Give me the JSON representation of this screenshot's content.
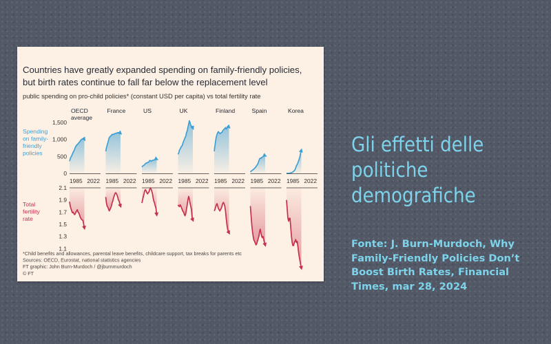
{
  "chart_data": {
    "type": "line",
    "title_lines": [
      "Countries have greatly expanded spending on family-friendly policies,",
      "but birth rates continue to fall far below the replacement level"
    ],
    "subtitle": "public spending on pro-child policies* (constant USD per capita) vs total fertility rate",
    "top_label": [
      "Spending",
      "on family-",
      "friendly",
      "policies"
    ],
    "bottom_label": [
      "Total",
      "fertility",
      "rate"
    ],
    "top_ylim": [
      0,
      1600
    ],
    "top_ticks": [
      "1,500",
      "1,000",
      "500",
      "0"
    ],
    "top_tick_values": [
      1500,
      1000,
      500,
      0
    ],
    "bottom_ylim": [
      0.9,
      2.1
    ],
    "bottom_ticks": [
      "2.1",
      "1.9",
      "1.7",
      "1.5",
      "1.3",
      "1.1"
    ],
    "bottom_tick_values": [
      2.1,
      1.9,
      1.7,
      1.5,
      1.3,
      1.1
    ],
    "x_tick_labels": [
      "1985",
      "2022"
    ],
    "xlim": [
      1980,
      2022
    ],
    "colors": {
      "spending": "#3f9fd3",
      "fertility": "#c5304c"
    },
    "countries": [
      {
        "name": [
          "OECD",
          "average"
        ],
        "spending": {
          "start": 1980,
          "values": [
            360,
            430,
            480,
            520,
            560,
            620,
            650,
            700,
            760,
            800,
            830,
            850,
            870,
            900,
            920,
            950,
            980,
            1000,
            1010,
            1020,
            1030,
            1000
          ]
        },
        "fertility": {
          "start": 1980,
          "values": [
            1.87,
            1.8,
            1.76,
            1.72,
            1.69,
            1.7,
            1.68,
            1.66,
            1.67,
            1.7,
            1.72,
            1.74,
            1.7,
            1.69,
            1.66,
            1.62,
            1.6,
            1.58,
            1.57,
            1.56,
            1.5,
            1.44
          ]
        }
      },
      {
        "name": [
          "France"
        ],
        "spending": {
          "start": 1980,
          "values": [
            650,
            750,
            830,
            900,
            980,
            1050,
            1080,
            1100,
            1120,
            1150,
            1140,
            1150,
            1160,
            1170,
            1180,
            1180,
            1190,
            1200,
            1200,
            1190,
            1200,
            1180
          ]
        },
        "fertility": {
          "start": 1980,
          "values": [
            1.95,
            1.85,
            1.8,
            1.78,
            1.75,
            1.72,
            1.74,
            1.77,
            1.8,
            1.85,
            1.88,
            1.93,
            1.97,
            2.0,
            2.02,
            2.01,
            1.98,
            1.95,
            1.9,
            1.88,
            1.83,
            1.8
          ]
        }
      },
      {
        "name": [
          "US"
        ],
        "spending": {
          "start": 1980,
          "values": [
            190,
            210,
            230,
            240,
            260,
            290,
            300,
            310,
            320,
            330,
            340,
            380,
            380,
            360,
            370,
            380,
            390,
            390,
            400,
            410,
            430,
            420
          ]
        },
        "fertility": {
          "start": 1980,
          "values": [
            1.85,
            1.9,
            1.95,
            2.0,
            2.05,
            2.07,
            2.05,
            2.02,
            2.0,
            2.02,
            2.03,
            2.07,
            2.1,
            2.08,
            2.05,
            2.0,
            1.93,
            1.88,
            1.85,
            1.8,
            1.76,
            1.66
          ]
        }
      },
      {
        "name": [
          "UK"
        ],
        "spending": {
          "start": 1980,
          "values": [
            560,
            600,
            680,
            720,
            760,
            800,
            820,
            900,
            950,
            1000,
            1050,
            1100,
            1200,
            1250,
            1350,
            1450,
            1550,
            1500,
            1420,
            1390,
            1380,
            1330
          ]
        },
        "fertility": {
          "start": 1980,
          "values": [
            1.82,
            1.8,
            1.79,
            1.82,
            1.8,
            1.77,
            1.74,
            1.71,
            1.7,
            1.66,
            1.64,
            1.68,
            1.75,
            1.82,
            1.9,
            1.96,
            1.92,
            1.85,
            1.8,
            1.74,
            1.6,
            1.57
          ]
        }
      },
      {
        "name": [
          "Finland"
        ],
        "spending": {
          "start": 1980,
          "values": [
            650,
            800,
            950,
            1080,
            1150,
            1200,
            1230,
            1200,
            1170,
            1180,
            1200,
            1210,
            1250,
            1280,
            1300,
            1320,
            1350,
            1300,
            1330,
            1350,
            1380,
            1360
          ]
        },
        "fertility": {
          "start": 1980,
          "values": [
            1.72,
            1.74,
            1.78,
            1.82,
            1.84,
            1.8,
            1.76,
            1.74,
            1.72,
            1.74,
            1.76,
            1.8,
            1.84,
            1.86,
            1.84,
            1.8,
            1.72,
            1.6,
            1.5,
            1.42,
            1.38,
            1.36
          ]
        }
      },
      {
        "name": [
          "Spain"
        ],
        "spending": {
          "start": 1980,
          "values": [
            40,
            60,
            80,
            100,
            110,
            130,
            150,
            170,
            200,
            230,
            260,
            300,
            370,
            420,
            450,
            440,
            470,
            480,
            490,
            510,
            530,
            520
          ]
        },
        "fertility": {
          "start": 1980,
          "values": [
            1.8,
            1.65,
            1.5,
            1.38,
            1.3,
            1.24,
            1.22,
            1.19,
            1.16,
            1.18,
            1.22,
            1.26,
            1.3,
            1.37,
            1.42,
            1.36,
            1.3,
            1.28,
            1.3,
            1.24,
            1.2,
            1.16
          ]
        }
      },
      {
        "name": [
          "Korea"
        ],
        "spending": {
          "start": 1980,
          "values": [
            0,
            0,
            0,
            5,
            5,
            10,
            15,
            20,
            30,
            40,
            60,
            80,
            110,
            160,
            220,
            260,
            300,
            360,
            420,
            500,
            600,
            680
          ]
        },
        "fertility": {
          "start": 1980,
          "values": [
            1.9,
            1.75,
            1.6,
            1.55,
            1.6,
            1.6,
            1.45,
            1.3,
            1.2,
            1.15,
            1.15,
            1.2,
            1.22,
            1.25,
            1.2,
            1.22,
            1.15,
            1.05,
            0.97,
            0.9,
            0.84,
            0.78
          ]
        }
      }
    ],
    "notes": [
      "*Child benefits and allowances, parental leave benefits, childcare support, tax breaks for parents etc",
      "Sources: OECD, Eurostat, national statistics agencies",
      "FT graphic: John Burn-Murdoch / @jburnmurdoch",
      "© FT"
    ]
  },
  "side": {
    "title_lines": [
      "Gli effetti delle",
      "politiche",
      "demografiche"
    ],
    "source_lines": [
      "Fonte: J. Burn-Murdoch, Why",
      "Family-Friendly Policies Don’t",
      "Boost Birth Rates, Financial",
      "Times, mar 28, 2024"
    ]
  }
}
